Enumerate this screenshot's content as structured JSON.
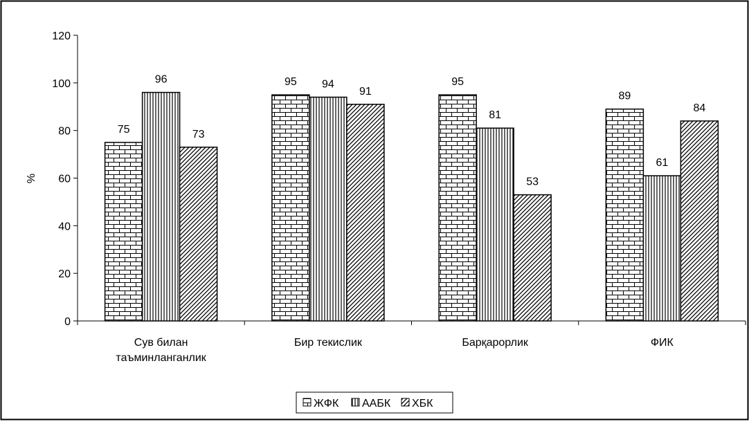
{
  "chart_data": {
    "type": "bar",
    "title": "",
    "xlabel": "",
    "ylabel": "%",
    "ylim": [
      0,
      120
    ],
    "yticks": [
      0,
      20,
      40,
      60,
      80,
      100,
      120
    ],
    "categories": [
      [
        "Сув билан",
        "таъминланганлик"
      ],
      [
        "Бир текислик"
      ],
      [
        "Барқарорлик"
      ],
      [
        "ФИК"
      ]
    ],
    "series": [
      {
        "name": "ЖФК",
        "pattern": "bricks",
        "values": [
          75,
          95,
          95,
          89
        ]
      },
      {
        "name": "ААБК",
        "pattern": "vertical-lines",
        "values": [
          96,
          94,
          81,
          61
        ]
      },
      {
        "name": "ХБК",
        "pattern": "diagonal-lines",
        "values": [
          73,
          91,
          53,
          84
        ]
      }
    ],
    "data_labels": true,
    "grid": false,
    "legend_position": "bottom-center",
    "colors": {
      "bar_fill": "#ffffff",
      "pattern_stroke": "#000000",
      "border": "#000000"
    }
  }
}
